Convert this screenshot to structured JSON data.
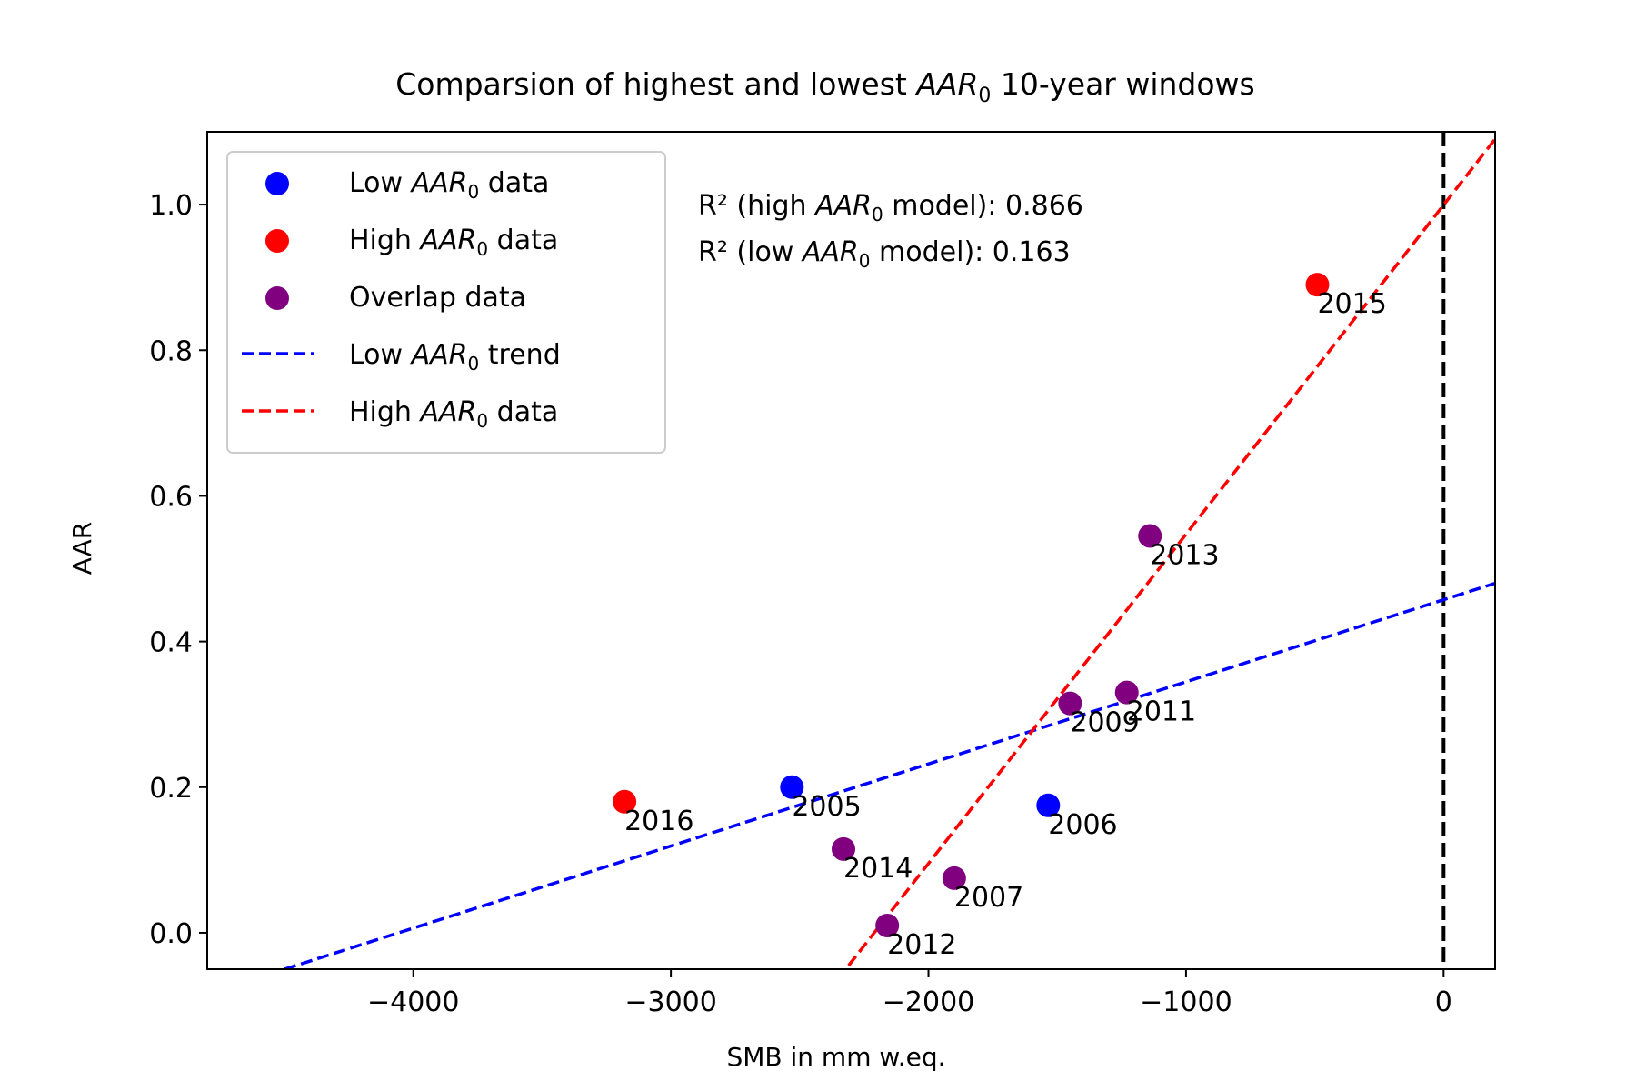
{
  "chart_data": {
    "type": "scatter",
    "title_prefix": "Comparsion of highest and lowest ",
    "title_italic": "AAR",
    "title_sub": "0",
    "title_suffix": " 10-year windows",
    "xlabel": "SMB in mm w.eq.",
    "ylabel": "AAR",
    "xlim": [
      -4800,
      200
    ],
    "ylim": [
      -0.05,
      1.1
    ],
    "xticks": [
      -4000,
      -3000,
      -2000,
      -1000,
      0
    ],
    "xtick_labels": [
      "−4000",
      "−3000",
      "−2000",
      "−1000",
      "0"
    ],
    "yticks": [
      0.0,
      0.2,
      0.4,
      0.6,
      0.8,
      1.0
    ],
    "ytick_labels": [
      "0.0",
      "0.2",
      "0.4",
      "0.6",
      "0.8",
      "1.0"
    ],
    "grid": false,
    "legend_position": "top-left",
    "annotation": {
      "line1_prefix": "R² (high ",
      "line1_suffix": " model): 0.866",
      "line2_prefix": "R² (low ",
      "line2_suffix": " model): 0.163",
      "italic": "AAR",
      "sub": "0"
    },
    "series": [
      {
        "name": "Low AAR0 data",
        "legend_prefix": "Low ",
        "legend_suffix": " data",
        "kind": "scatter",
        "color": "#0000ff",
        "points": [
          {
            "x": -2530,
            "y": 0.2,
            "label": "2005"
          },
          {
            "x": -1535,
            "y": 0.175,
            "label": "2006"
          }
        ]
      },
      {
        "name": "High AAR0 data",
        "legend_prefix": "High ",
        "legend_suffix": " data",
        "kind": "scatter",
        "color": "#ff0000",
        "points": [
          {
            "x": -3180,
            "y": 0.18,
            "label": "2016"
          },
          {
            "x": -490,
            "y": 0.89,
            "label": "2015"
          }
        ]
      },
      {
        "name": "Overlap data",
        "legend_prefix": "Overlap data",
        "legend_suffix": "",
        "plain": true,
        "kind": "scatter",
        "color": "#800080",
        "points": [
          {
            "x": -1140,
            "y": 0.545,
            "label": "2013"
          },
          {
            "x": -1450,
            "y": 0.315,
            "label": "2009"
          },
          {
            "x": -1230,
            "y": 0.33,
            "label": "2011"
          },
          {
            "x": -2330,
            "y": 0.115,
            "label": "2014"
          },
          {
            "x": -1900,
            "y": 0.075,
            "label": "2007"
          },
          {
            "x": -2160,
            "y": 0.01,
            "label": "2012"
          }
        ]
      },
      {
        "name": "Low AAR0 trend",
        "legend_prefix": "Low ",
        "legend_suffix": " trend",
        "kind": "line",
        "color": "#0000ff",
        "x": [
          -4500,
          200
        ],
        "y": [
          -0.05,
          0.48
        ]
      },
      {
        "name": "High AAR0 data",
        "legend_prefix": "High ",
        "legend_suffix": " data",
        "kind": "line",
        "color": "#ff0000",
        "x": [
          -2310,
          200
        ],
        "y": [
          -0.045,
          1.09
        ]
      }
    ],
    "reference_line": {
      "x": 0,
      "color": "#000000"
    }
  }
}
